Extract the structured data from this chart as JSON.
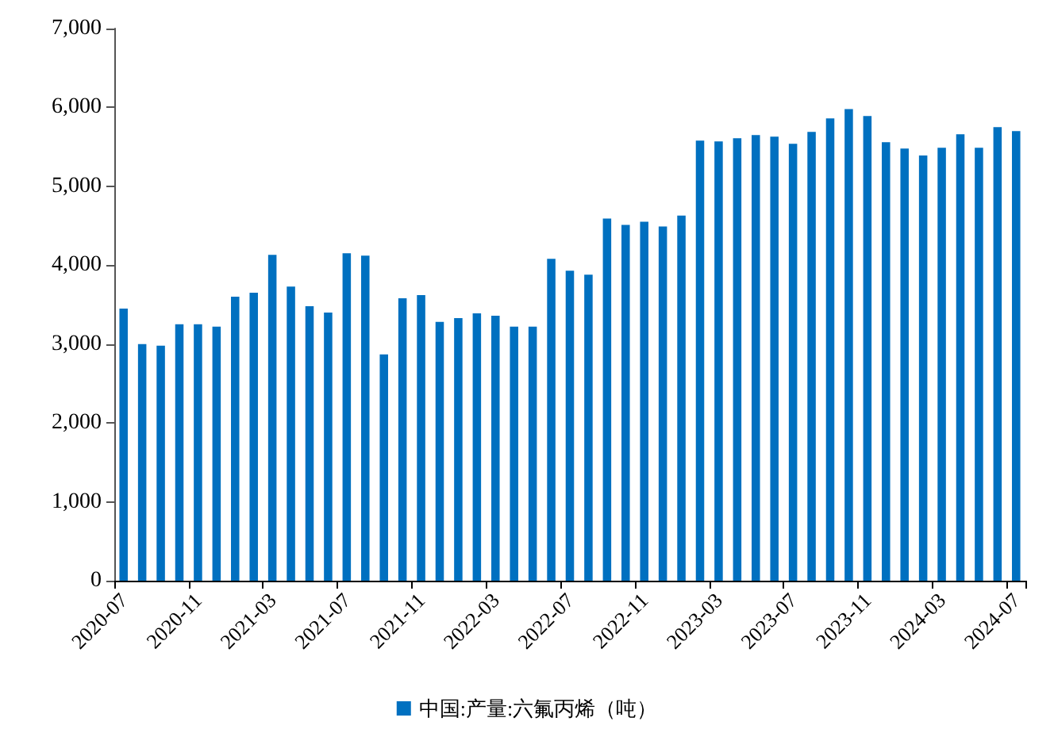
{
  "chart_data": {
    "type": "bar",
    "categories": [
      "2020-07",
      null,
      null,
      null,
      "2020-11",
      null,
      null,
      null,
      "2021-03",
      null,
      null,
      null,
      "2021-07",
      null,
      null,
      null,
      "2021-11",
      null,
      null,
      null,
      "2022-03",
      null,
      null,
      null,
      "2022-07",
      null,
      null,
      null,
      "2022-11",
      null,
      null,
      null,
      "2023-03",
      null,
      null,
      null,
      "2023-07",
      null,
      null,
      null,
      "2023-11",
      null,
      null,
      null,
      "2024-03",
      null,
      null,
      null,
      "2024-07"
    ],
    "series": [
      {
        "name": "中国:产量:六氟丙烯（吨）",
        "color": "#0070c0",
        "values": [
          3450,
          3000,
          2980,
          3250,
          3250,
          3220,
          3600,
          3650,
          4130,
          3730,
          3480,
          3400,
          4150,
          4120,
          2870,
          3580,
          3620,
          3280,
          3330,
          3390,
          3360,
          3220,
          3220,
          4080,
          3930,
          3880,
          4590,
          4510,
          4550,
          4490,
          4630,
          5580,
          5570,
          5610,
          5650,
          5630,
          5540,
          5690,
          5860,
          5980,
          5890,
          5560,
          5480,
          5390,
          5490,
          5660,
          5490,
          5750,
          5700
        ]
      }
    ],
    "ylim": [
      0,
      7000
    ],
    "yticks": [
      0,
      {
        "value": 1000,
        "label": "1,000"
      },
      {
        "value": 2000,
        "label": "2,000"
      },
      {
        "value": 3000,
        "label": "3,000"
      },
      {
        "value": 4000,
        "label": "4,000"
      },
      {
        "value": 5000,
        "label": "5,000"
      },
      {
        "value": 6000,
        "label": "6,000"
      },
      {
        "value": 7000,
        "label": "7,000"
      }
    ],
    "grid": false,
    "legend": "bottom"
  }
}
